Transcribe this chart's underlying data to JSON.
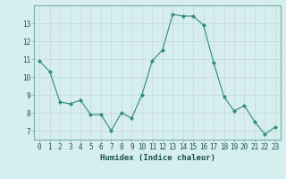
{
  "x": [
    0,
    1,
    2,
    3,
    4,
    5,
    6,
    7,
    8,
    9,
    10,
    11,
    12,
    13,
    14,
    15,
    16,
    17,
    18,
    19,
    20,
    21,
    22,
    23
  ],
  "y": [
    10.9,
    10.3,
    8.6,
    8.5,
    8.7,
    7.9,
    7.9,
    7.0,
    8.0,
    7.7,
    9.0,
    10.9,
    11.5,
    13.5,
    13.4,
    13.4,
    12.9,
    10.8,
    8.9,
    8.1,
    8.4,
    7.5,
    6.8,
    7.2
  ],
  "xlabel": "Humidex (Indice chaleur)",
  "ylabel": "",
  "ylim": [
    6.5,
    14.0
  ],
  "xlim": [
    -0.5,
    23.5
  ],
  "yticks": [
    7,
    8,
    9,
    10,
    11,
    12,
    13
  ],
  "xticks": [
    0,
    1,
    2,
    3,
    4,
    5,
    6,
    7,
    8,
    9,
    10,
    11,
    12,
    13,
    14,
    15,
    16,
    17,
    18,
    19,
    20,
    21,
    22,
    23
  ],
  "line_color": "#2e8b74",
  "marker": "D",
  "marker_size": 2.0,
  "bg_color": "#d6eeee",
  "grid_color": "#c4d8d8",
  "axis_label_color": "#1a5050",
  "tick_label_color": "#1a5050",
  "xlabel_fontsize": 6.5,
  "tick_fontsize": 5.5
}
